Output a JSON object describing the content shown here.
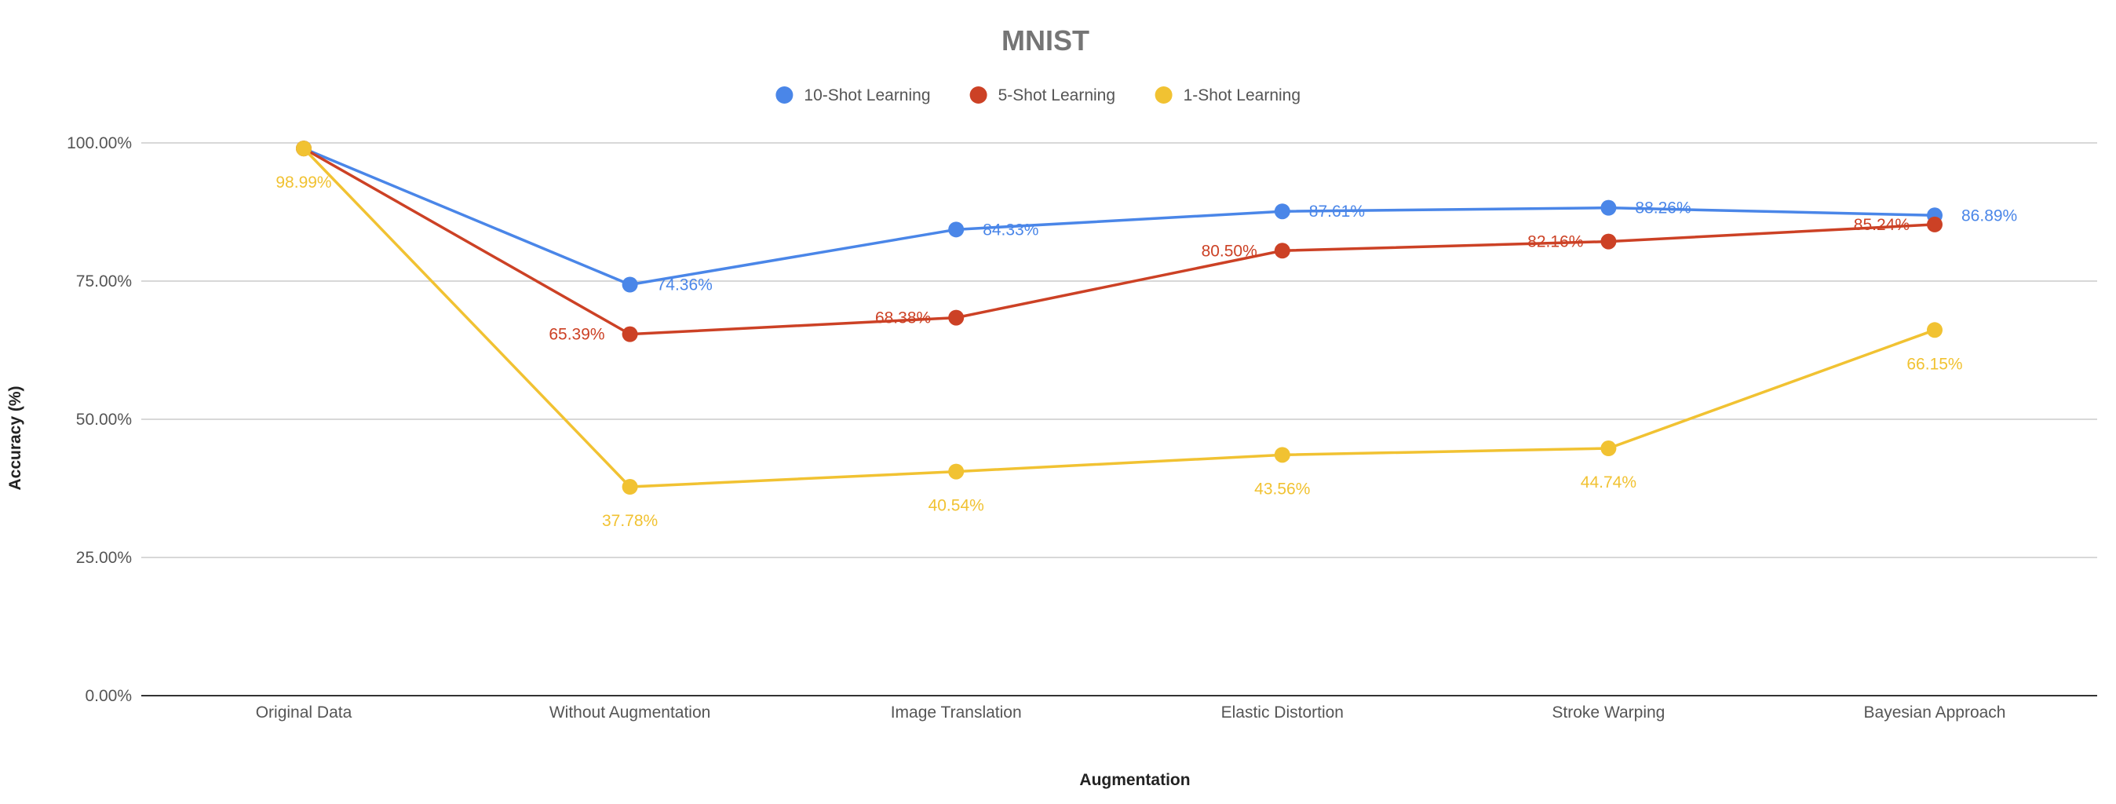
{
  "chart_data": {
    "type": "line",
    "title": "MNIST",
    "xlabel": "Augmentation",
    "ylabel": "Accuracy (%)",
    "categories": [
      "Original Data",
      "Without Augmentation",
      "Image Translation",
      "Elastic Distortion",
      "Stroke Warping",
      "Bayesian Approach"
    ],
    "ylim": [
      0,
      100
    ],
    "yticks": [
      "0.00%",
      "25.00%",
      "50.00%",
      "75.00%",
      "100.00%"
    ],
    "grid": true,
    "legend_position": "top",
    "series": [
      {
        "name": "10-Shot Learning",
        "color": "#4a86e8",
        "values": [
          98.99,
          74.36,
          84.33,
          87.61,
          88.26,
          86.89
        ],
        "labels": [
          "",
          "74.36%",
          "84.33%",
          "87.61%",
          "88.26%",
          "86.89%"
        ]
      },
      {
        "name": "5-Shot Learning",
        "color": "#cc4125",
        "values": [
          98.99,
          65.39,
          68.38,
          80.5,
          82.16,
          85.24
        ],
        "labels": [
          "",
          "65.39%",
          "68.38%",
          "80.50%",
          "82.16%",
          "85.24%"
        ]
      },
      {
        "name": "1-Shot Learning",
        "color": "#f1c232",
        "values": [
          98.99,
          37.78,
          40.54,
          43.56,
          44.74,
          66.15
        ],
        "labels": [
          "98.99%",
          "37.78%",
          "40.54%",
          "43.56%",
          "44.74%",
          "66.15%"
        ]
      }
    ]
  }
}
